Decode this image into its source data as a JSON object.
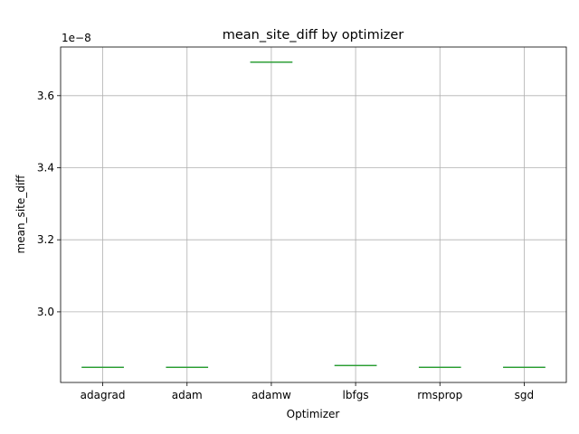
{
  "chart_data": {
    "type": "box",
    "title": "mean_site_diff by optimizer",
    "xlabel": "Optimizer",
    "ylabel": "mean_site_diff",
    "offset_label": "1e−8",
    "categories": [
      "adagrad",
      "adam",
      "adamw",
      "lbfgs",
      "rmsprop",
      "sgd"
    ],
    "values": [
      2.846e-08,
      2.846e-08,
      3.693e-08,
      2.851e-08,
      2.846e-08,
      2.846e-08
    ],
    "yticks": [
      3.0,
      3.2,
      3.4,
      3.6
    ],
    "ytick_labels": [
      "3.0",
      "3.2",
      "3.4",
      "3.6"
    ],
    "ylim": [
      2.804e-08,
      3.735e-08
    ],
    "grid": true,
    "colors": {
      "median": "#2ca02c",
      "box": "#1f77b4"
    }
  }
}
